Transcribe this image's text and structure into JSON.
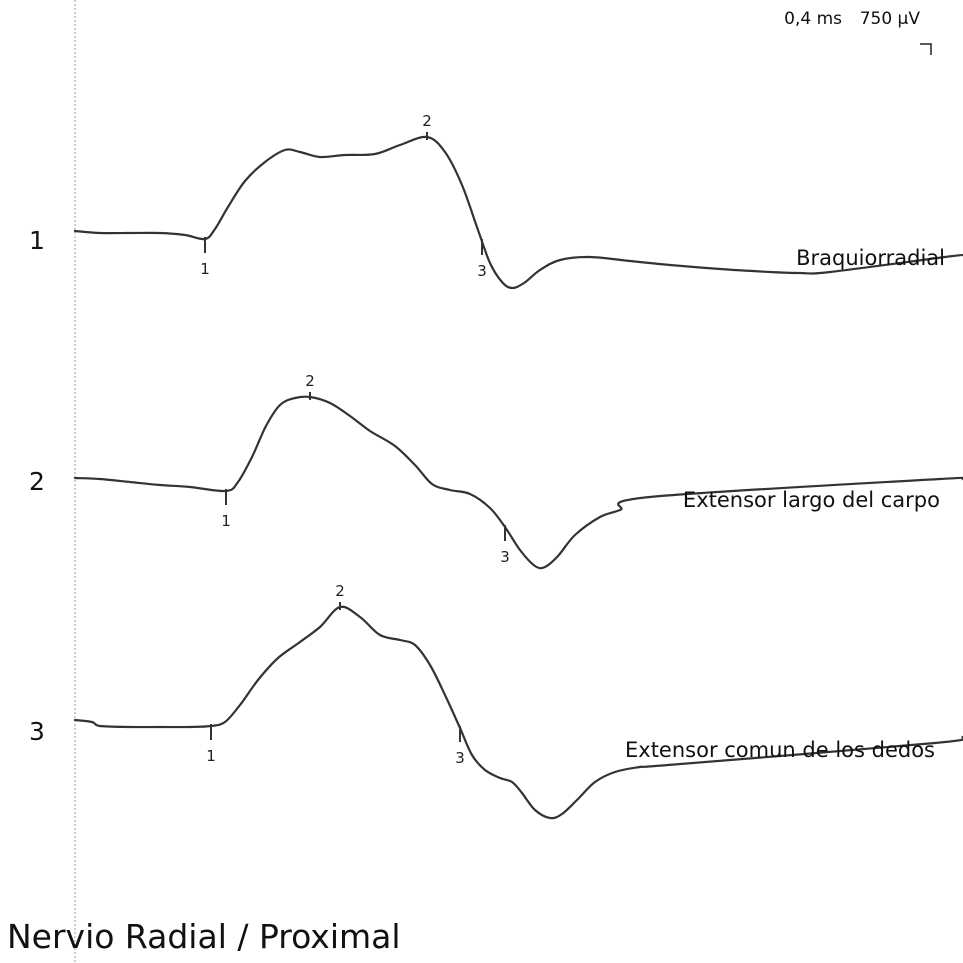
{
  "chart_data": {
    "type": "line",
    "title": "Nervio Radial / Proximal",
    "scale": {
      "time": "0,4 ms",
      "amplitude": "750 µV"
    },
    "traces": [
      {
        "number": "1",
        "muscle": "Braquiorradial",
        "markers": [
          {
            "label": "1",
            "x": 205
          },
          {
            "label": "2",
            "x": 427
          },
          {
            "label": "3",
            "x": 482
          }
        ],
        "points": [
          [
            75,
            231
          ],
          [
            100,
            233
          ],
          [
            130,
            233
          ],
          [
            160,
            233
          ],
          [
            185,
            235
          ],
          [
            205,
            239
          ],
          [
            215,
            229
          ],
          [
            228,
            207
          ],
          [
            245,
            181
          ],
          [
            265,
            162
          ],
          [
            285,
            150
          ],
          [
            300,
            152
          ],
          [
            320,
            157
          ],
          [
            345,
            155
          ],
          [
            375,
            154
          ],
          [
            400,
            145
          ],
          [
            427,
            137
          ],
          [
            445,
            152
          ],
          [
            462,
            185
          ],
          [
            478,
            230
          ],
          [
            490,
            263
          ],
          [
            502,
            282
          ],
          [
            512,
            288
          ],
          [
            524,
            283
          ],
          [
            540,
            270
          ],
          [
            560,
            260
          ],
          [
            590,
            257
          ],
          [
            630,
            261
          ],
          [
            670,
            265
          ],
          [
            720,
            269
          ],
          [
            770,
            272
          ],
          [
            800,
            273
          ],
          [
            830,
            272
          ],
          [
            945,
            257
          ],
          [
            963,
            255
          ]
        ]
      },
      {
        "number": "2",
        "muscle": "Extensor largo del carpo",
        "markers": [
          {
            "label": "1",
            "x": 226
          },
          {
            "label": "2",
            "x": 310
          },
          {
            "label": "3",
            "x": 505
          }
        ],
        "points": [
          [
            75,
            478
          ],
          [
            100,
            479
          ],
          [
            130,
            482
          ],
          [
            160,
            485
          ],
          [
            190,
            487
          ],
          [
            226,
            491
          ],
          [
            238,
            482
          ],
          [
            252,
            457
          ],
          [
            266,
            426
          ],
          [
            280,
            405
          ],
          [
            295,
            398
          ],
          [
            310,
            397
          ],
          [
            330,
            403
          ],
          [
            350,
            416
          ],
          [
            370,
            431
          ],
          [
            395,
            446
          ],
          [
            415,
            465
          ],
          [
            432,
            484
          ],
          [
            450,
            490
          ],
          [
            470,
            494
          ],
          [
            490,
            508
          ],
          [
            505,
            527
          ],
          [
            520,
            550
          ],
          [
            535,
            566
          ],
          [
            545,
            567
          ],
          [
            558,
            556
          ],
          [
            575,
            535
          ],
          [
            600,
            517
          ],
          [
            620,
            510
          ],
          [
            650,
            497
          ],
          [
            940,
            479
          ],
          [
            963,
            479
          ]
        ]
      },
      {
        "number": "3",
        "muscle": "Extensor comun de los dedos",
        "markers": [
          {
            "label": "1",
            "x": 211
          },
          {
            "label": "2",
            "x": 340
          },
          {
            "label": "3",
            "x": 460
          }
        ],
        "points": [
          [
            75,
            720
          ],
          [
            92,
            722
          ],
          [
            100,
            726
          ],
          [
            130,
            727
          ],
          [
            160,
            727
          ],
          [
            190,
            727
          ],
          [
            211,
            726
          ],
          [
            225,
            722
          ],
          [
            240,
            705
          ],
          [
            258,
            680
          ],
          [
            278,
            658
          ],
          [
            300,
            642
          ],
          [
            320,
            627
          ],
          [
            340,
            607
          ],
          [
            360,
            617
          ],
          [
            380,
            635
          ],
          [
            400,
            640
          ],
          [
            415,
            645
          ],
          [
            430,
            665
          ],
          [
            445,
            695
          ],
          [
            460,
            728
          ],
          [
            472,
            755
          ],
          [
            485,
            770
          ],
          [
            500,
            778
          ],
          [
            512,
            782
          ],
          [
            522,
            793
          ],
          [
            535,
            810
          ],
          [
            550,
            818
          ],
          [
            562,
            814
          ],
          [
            578,
            799
          ],
          [
            595,
            782
          ],
          [
            615,
            772
          ],
          [
            640,
            767
          ],
          [
            668,
            765
          ],
          [
            935,
            743
          ],
          [
            963,
            737
          ]
        ]
      }
    ]
  }
}
